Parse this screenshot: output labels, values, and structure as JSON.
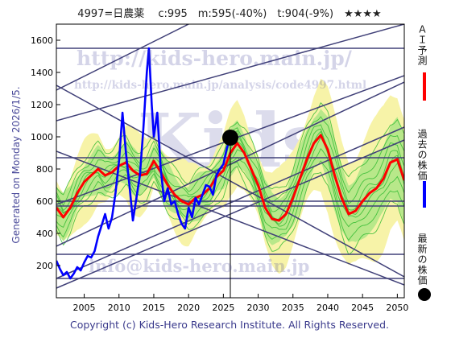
{
  "header": {
    "title": "4997=日農薬　 c:995　m:595(-40%)　t:904(-9%)　★★★★"
  },
  "footer": {
    "copyright": "Copyright (c) Kids-Hero Research Institute. All Rights Reserved."
  },
  "side": {
    "generated": "Generated on Monday 2026/1/5."
  },
  "legend": {
    "ai_label": "ＡＩ予測",
    "past_label": "過去の株価",
    "latest_label": "最新の株価",
    "ai_color": "#ff0000",
    "past_color": "#0000ff",
    "latest_color": "#000000"
  },
  "watermarks": {
    "url": "http://kids-hero.main.jp/",
    "analysis": "http://kids-hero.main.jp/analysis/code4997.html",
    "mail": "info@kids-hero.main.jp",
    "logo": "Kids"
  },
  "chart_data": {
    "type": "line",
    "xlim": [
      2001,
      2051
    ],
    "ylim": [
      0,
      1700
    ],
    "x_ticks": [
      2005,
      2010,
      2015,
      2020,
      2025,
      2030,
      2035,
      2040,
      2045,
      2050
    ],
    "y_ticks": [
      200,
      400,
      600,
      800,
      1000,
      1200,
      1400,
      1600
    ],
    "grid": false,
    "horizontal_levels": [
      120,
      270,
      570,
      600,
      870,
      1550
    ],
    "current_date": 2026.0,
    "latest_price": 995,
    "past_price": [
      [
        2001.0,
        230
      ],
      [
        2001.5,
        180
      ],
      [
        2002.0,
        140
      ],
      [
        2002.5,
        160
      ],
      [
        2003.0,
        120
      ],
      [
        2003.5,
        150
      ],
      [
        2004.0,
        190
      ],
      [
        2004.5,
        170
      ],
      [
        2005.0,
        220
      ],
      [
        2005.5,
        260
      ],
      [
        2006.0,
        250
      ],
      [
        2006.5,
        290
      ],
      [
        2007.0,
        380
      ],
      [
        2007.5,
        450
      ],
      [
        2008.0,
        520
      ],
      [
        2008.5,
        430
      ],
      [
        2009.0,
        500
      ],
      [
        2009.5,
        650
      ],
      [
        2010.0,
        850
      ],
      [
        2010.5,
        1150
      ],
      [
        2011.0,
        900
      ],
      [
        2011.5,
        700
      ],
      [
        2012.0,
        480
      ],
      [
        2012.5,
        620
      ],
      [
        2013.0,
        760
      ],
      [
        2013.5,
        1050
      ],
      [
        2014.0,
        1400
      ],
      [
        2014.3,
        1550
      ],
      [
        2014.7,
        1200
      ],
      [
        2015.0,
        1000
      ],
      [
        2015.5,
        1150
      ],
      [
        2016.0,
        800
      ],
      [
        2016.5,
        600
      ],
      [
        2017.0,
        680
      ],
      [
        2017.5,
        580
      ],
      [
        2018.0,
        600
      ],
      [
        2018.5,
        520
      ],
      [
        2019.0,
        460
      ],
      [
        2019.5,
        430
      ],
      [
        2020.0,
        560
      ],
      [
        2020.5,
        500
      ],
      [
        2021.0,
        620
      ],
      [
        2021.5,
        580
      ],
      [
        2022.0,
        640
      ],
      [
        2022.5,
        700
      ],
      [
        2023.0,
        690
      ],
      [
        2023.5,
        640
      ],
      [
        2024.0,
        760
      ],
      [
        2024.5,
        800
      ],
      [
        2025.0,
        830
      ],
      [
        2025.5,
        930
      ],
      [
        2026.0,
        995
      ]
    ],
    "ai_forecast": [
      [
        2001.0,
        560
      ],
      [
        2002.0,
        500
      ],
      [
        2003.0,
        560
      ],
      [
        2004.0,
        650
      ],
      [
        2005.0,
        720
      ],
      [
        2006.0,
        760
      ],
      [
        2007.0,
        800
      ],
      [
        2008.0,
        760
      ],
      [
        2009.0,
        780
      ],
      [
        2010.0,
        820
      ],
      [
        2011.0,
        840
      ],
      [
        2012.0,
        790
      ],
      [
        2013.0,
        760
      ],
      [
        2014.0,
        770
      ],
      [
        2015.0,
        850
      ],
      [
        2016.0,
        780
      ],
      [
        2017.0,
        700
      ],
      [
        2018.0,
        640
      ],
      [
        2019.0,
        600
      ],
      [
        2020.0,
        580
      ],
      [
        2021.0,
        620
      ],
      [
        2022.0,
        640
      ],
      [
        2023.0,
        680
      ],
      [
        2024.0,
        750
      ],
      [
        2025.0,
        790
      ],
      [
        2026.0,
        900
      ],
      [
        2027.0,
        960
      ],
      [
        2028.0,
        900
      ],
      [
        2029.0,
        800
      ],
      [
        2030.0,
        700
      ],
      [
        2031.0,
        560
      ],
      [
        2032.0,
        490
      ],
      [
        2033.0,
        480
      ],
      [
        2034.0,
        520
      ],
      [
        2035.0,
        620
      ],
      [
        2036.0,
        740
      ],
      [
        2037.0,
        860
      ],
      [
        2038.0,
        960
      ],
      [
        2039.0,
        1010
      ],
      [
        2040.0,
        920
      ],
      [
        2041.0,
        760
      ],
      [
        2042.0,
        620
      ],
      [
        2043.0,
        520
      ],
      [
        2044.0,
        540
      ],
      [
        2045.0,
        600
      ],
      [
        2046.0,
        650
      ],
      [
        2047.0,
        680
      ],
      [
        2048.0,
        740
      ],
      [
        2049.0,
        840
      ],
      [
        2050.0,
        860
      ],
      [
        2051.0,
        730
      ]
    ],
    "trend_lines": [
      [
        [
          2001,
          1290
        ],
        [
          2020,
          1700
        ]
      ],
      [
        [
          2001,
          1100
        ],
        [
          2051,
          1700
        ]
      ],
      [
        [
          2001,
          580
        ],
        [
          2051,
          1380
        ]
      ],
      [
        [
          2001,
          320
        ],
        [
          2051,
          1340
        ]
      ],
      [
        [
          2001,
          120
        ],
        [
          2051,
          1060
        ]
      ],
      [
        [
          2001,
          60
        ],
        [
          2051,
          980
        ]
      ],
      [
        [
          2001,
          1320
        ],
        [
          2051,
          130
        ]
      ],
      [
        [
          2001,
          910
        ],
        [
          2051,
          80
        ]
      ]
    ]
  }
}
